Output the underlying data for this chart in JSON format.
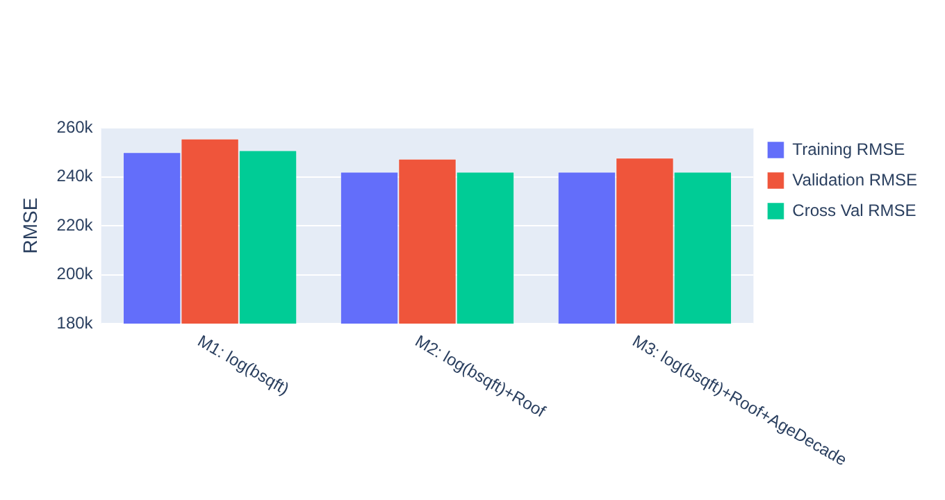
{
  "chart_data": {
    "type": "bar",
    "ylabel": "RMSE",
    "categories": [
      "M1: log(bsqft)",
      "M2: log(bsqft)+Roof",
      "M3: log(bsqft)+Roof+AgeDecade"
    ],
    "series": [
      {
        "name": "Training RMSE",
        "color": "#636efa",
        "values": [
          250000,
          242000,
          242000
        ]
      },
      {
        "name": "Validation RMSE",
        "color": "#ef553b",
        "values": [
          255500,
          247300,
          247700
        ]
      },
      {
        "name": "Cross Val RMSE",
        "color": "#00cc96",
        "values": [
          250800,
          242000,
          242000
        ]
      }
    ],
    "ylim": [
      180000,
      260000
    ],
    "yticks": [
      {
        "value": 180000,
        "label": "180k"
      },
      {
        "value": 200000,
        "label": "200k"
      },
      {
        "value": 220000,
        "label": "220k"
      },
      {
        "value": 240000,
        "label": "240k"
      },
      {
        "value": 260000,
        "label": "260k"
      }
    ],
    "grid": "y",
    "legend": "top right"
  }
}
